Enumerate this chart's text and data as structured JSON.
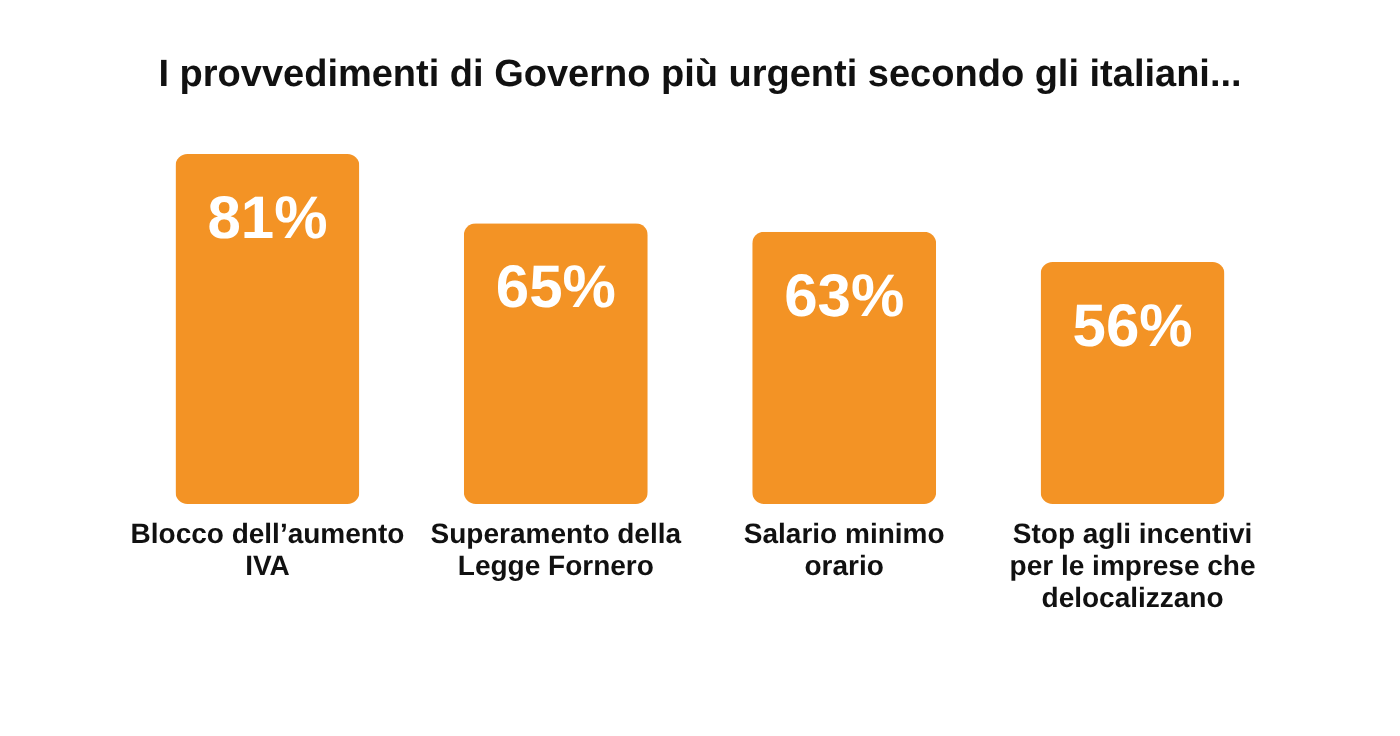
{
  "chart_data": {
    "type": "bar",
    "title": "I provvedimenti di Governo più urgenti secondo gli italiani...",
    "categories": [
      "Blocco dell’aumento IVA",
      "Superamento della Legge Fornero",
      "Salario minimo orario",
      "Stop agli incentivi per le imprese che delocalizzano"
    ],
    "values": [
      81,
      65,
      63,
      56
    ],
    "color": "#f39325",
    "value_labels": [
      "81%",
      "65%",
      "63%",
      "56%"
    ]
  }
}
